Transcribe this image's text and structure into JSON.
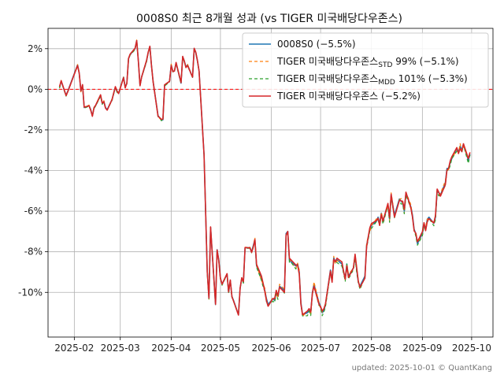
{
  "chart_data": {
    "type": "line",
    "title": "0008S0 최근 8개월 성과 (vs TIGER 미국배당다우존스)",
    "footer": "updated: 2025-10-01 © QuantKang",
    "xlabel": "",
    "ylabel": "",
    "x_ticks": [
      "2025-02",
      "2025-03",
      "2025-04",
      "2025-05",
      "2025-06",
      "2025-07",
      "2025-08",
      "2025-09",
      "2025-10"
    ],
    "y_ticks": [
      "2%",
      "0%",
      "-2%",
      "-4%",
      "-6%",
      "-8%",
      "-10%"
    ],
    "y_tick_values": [
      2,
      0,
      -2,
      -4,
      -6,
      -8,
      -10
    ],
    "xlim": [
      "2025-01-16",
      "2025-10-14"
    ],
    "ylim": [
      -12.2,
      3.0
    ],
    "grid": true,
    "reference_line": {
      "y": 0,
      "color": "#ff0000",
      "style": "dashed"
    },
    "legend_position": "top-right",
    "legend": [
      {
        "prefix": "0008S0 (−5.5%)",
        "sub": "",
        "suffix": ""
      },
      {
        "prefix": "TIGER 미국배당다우존스",
        "sub": "STD",
        "suffix": " 99% (−5.1%)"
      },
      {
        "prefix": "TIGER 미국배당다우존스",
        "sub": "MDD",
        "suffix": " 101% (−5.3%)"
      },
      {
        "prefix": "TIGER 미국배당다우존스 (−5.2%)",
        "sub": "",
        "suffix": ""
      }
    ],
    "series": [
      {
        "name": "0008S0 (−5.5%)",
        "color": "#1f77b4",
        "dash": "",
        "width": 1.6,
        "points": [
          [
            "2025-01-23",
            0.1
          ],
          [
            "2025-01-24",
            0.4
          ],
          [
            "2025-01-27",
            -0.3
          ],
          [
            "2025-01-28",
            -0.1
          ],
          [
            "2025-02-03",
            1.2
          ],
          [
            "2025-02-04",
            0.8
          ],
          [
            "2025-02-05",
            -0.1
          ],
          [
            "2025-02-06",
            0.2
          ],
          [
            "2025-02-07",
            -0.9
          ],
          [
            "2025-02-10",
            -0.8
          ],
          [
            "2025-02-11",
            -1.0
          ],
          [
            "2025-02-12",
            -1.3
          ],
          [
            "2025-02-13",
            -0.9
          ],
          [
            "2025-02-14",
            -0.8
          ],
          [
            "2025-02-17",
            -0.3
          ],
          [
            "2025-02-18",
            -0.7
          ],
          [
            "2025-02-19",
            -0.6
          ],
          [
            "2025-02-20",
            -0.9
          ],
          [
            "2025-02-21",
            -1.0
          ],
          [
            "2025-02-24",
            -0.5
          ],
          [
            "2025-02-25",
            -0.2
          ],
          [
            "2025-02-26",
            0.1
          ],
          [
            "2025-02-27",
            -0.1
          ],
          [
            "2025-02-28",
            -0.2
          ],
          [
            "2025-03-03",
            0.6
          ],
          [
            "2025-03-04",
            0.1
          ],
          [
            "2025-03-05",
            0.3
          ],
          [
            "2025-03-06",
            1.5
          ],
          [
            "2025-03-07",
            1.7
          ],
          [
            "2025-03-10",
            2.0
          ],
          [
            "2025-03-11",
            2.4
          ],
          [
            "2025-03-12",
            1.4
          ],
          [
            "2025-03-13",
            0.2
          ],
          [
            "2025-03-14",
            0.6
          ],
          [
            "2025-03-17",
            1.4
          ],
          [
            "2025-03-18",
            1.8
          ],
          [
            "2025-03-19",
            2.1
          ],
          [
            "2025-03-20",
            1.2
          ],
          [
            "2025-03-21",
            0.4
          ],
          [
            "2025-03-24",
            -1.3
          ],
          [
            "2025-03-25",
            -1.4
          ],
          [
            "2025-03-26",
            -1.5
          ],
          [
            "2025-03-27",
            -1.5
          ],
          [
            "2025-03-28",
            0.2
          ],
          [
            "2025-03-31",
            0.4
          ],
          [
            "2025-04-01",
            1.2
          ],
          [
            "2025-04-02",
            0.9
          ],
          [
            "2025-04-03",
            0.9
          ],
          [
            "2025-04-04",
            1.3
          ],
          [
            "2025-04-07",
            0.3
          ],
          [
            "2025-04-08",
            1.6
          ],
          [
            "2025-04-09",
            1.4
          ],
          [
            "2025-04-10",
            1.1
          ],
          [
            "2025-04-11",
            1.2
          ],
          [
            "2025-04-14",
            0.6
          ],
          [
            "2025-04-15",
            2.0
          ],
          [
            "2025-04-16",
            1.8
          ],
          [
            "2025-04-17",
            1.4
          ],
          [
            "2025-04-18",
            0.9
          ],
          [
            "2025-04-21",
            -3.2
          ],
          [
            "2025-04-22",
            -6.0
          ],
          [
            "2025-04-23",
            -9.0
          ],
          [
            "2025-04-24",
            -10.3
          ],
          [
            "2025-04-25",
            -6.8
          ],
          [
            "2025-04-28",
            -10.6
          ],
          [
            "2025-04-29",
            -7.9
          ],
          [
            "2025-04-30",
            -8.4
          ],
          [
            "2025-05-01",
            -9.3
          ],
          [
            "2025-05-02",
            -9.6
          ],
          [
            "2025-05-05",
            -9.1
          ],
          [
            "2025-05-06",
            -10.0
          ],
          [
            "2025-05-07",
            -9.4
          ],
          [
            "2025-05-08",
            -10.2
          ],
          [
            "2025-05-09",
            -10.4
          ],
          [
            "2025-05-12",
            -11.1
          ],
          [
            "2025-05-13",
            -9.8
          ],
          [
            "2025-05-14",
            -9.3
          ],
          [
            "2025-05-15",
            -9.5
          ],
          [
            "2025-05-16",
            -7.8
          ],
          [
            "2025-05-19",
            -7.8
          ],
          [
            "2025-05-20",
            -8.0
          ],
          [
            "2025-05-21",
            -7.7
          ],
          [
            "2025-05-22",
            -7.4
          ],
          [
            "2025-05-23",
            -8.7
          ],
          [
            "2025-05-26",
            -9.3
          ],
          [
            "2025-05-27",
            -9.6
          ],
          [
            "2025-05-28",
            -9.9
          ],
          [
            "2025-05-29",
            -10.3
          ],
          [
            "2025-05-30",
            -10.6
          ],
          [
            "2025-06-02",
            -10.3
          ],
          [
            "2025-06-03",
            -10.4
          ],
          [
            "2025-06-04",
            -10.0
          ],
          [
            "2025-06-05",
            -10.2
          ],
          [
            "2025-06-06",
            -9.7
          ],
          [
            "2025-06-09",
            -9.9
          ],
          [
            "2025-06-10",
            -7.1
          ],
          [
            "2025-06-11",
            -7.0
          ],
          [
            "2025-06-12",
            -8.4
          ],
          [
            "2025-06-13",
            -8.5
          ],
          [
            "2025-06-16",
            -8.7
          ],
          [
            "2025-06-17",
            -8.6
          ],
          [
            "2025-06-18",
            -9.0
          ],
          [
            "2025-06-19",
            -10.5
          ],
          [
            "2025-06-20",
            -11.1
          ],
          [
            "2025-06-23",
            -11.0
          ],
          [
            "2025-06-24",
            -10.9
          ],
          [
            "2025-06-25",
            -11.0
          ],
          [
            "2025-06-26",
            -10.0
          ],
          [
            "2025-06-27",
            -9.6
          ],
          [
            "2025-06-30",
            -10.5
          ],
          [
            "2025-07-01",
            -10.7
          ],
          [
            "2025-07-02",
            -11.0
          ],
          [
            "2025-07-03",
            -10.9
          ],
          [
            "2025-07-04",
            -10.6
          ],
          [
            "2025-07-07",
            -8.9
          ],
          [
            "2025-07-08",
            -9.4
          ],
          [
            "2025-07-09",
            -8.3
          ],
          [
            "2025-07-10",
            -8.5
          ],
          [
            "2025-07-11",
            -8.4
          ],
          [
            "2025-07-14",
            -8.6
          ],
          [
            "2025-07-15",
            -9.0
          ],
          [
            "2025-07-16",
            -9.3
          ],
          [
            "2025-07-17",
            -8.6
          ],
          [
            "2025-07-18",
            -9.2
          ],
          [
            "2025-07-21",
            -8.8
          ],
          [
            "2025-07-22",
            -8.2
          ],
          [
            "2025-07-23",
            -8.9
          ],
          [
            "2025-07-24",
            -9.5
          ],
          [
            "2025-07-25",
            -9.7
          ],
          [
            "2025-07-28",
            -9.2
          ],
          [
            "2025-07-29",
            -7.7
          ],
          [
            "2025-07-30",
            -7.3
          ],
          [
            "2025-07-31",
            -6.9
          ],
          [
            "2025-08-01",
            -6.7
          ],
          [
            "2025-08-04",
            -6.5
          ],
          [
            "2025-08-05",
            -6.3
          ],
          [
            "2025-08-06",
            -6.6
          ],
          [
            "2025-08-07",
            -6.1
          ],
          [
            "2025-08-08",
            -6.5
          ],
          [
            "2025-08-11",
            -5.7
          ],
          [
            "2025-08-12",
            -6.4
          ],
          [
            "2025-08-13",
            -5.2
          ],
          [
            "2025-08-14",
            -5.7
          ],
          [
            "2025-08-15",
            -6.2
          ],
          [
            "2025-08-18",
            -5.4
          ],
          [
            "2025-08-19",
            -5.5
          ],
          [
            "2025-08-20",
            -5.6
          ],
          [
            "2025-08-21",
            -6.0
          ],
          [
            "2025-08-22",
            -5.1
          ],
          [
            "2025-08-25",
            -5.8
          ],
          [
            "2025-08-26",
            -6.2
          ],
          [
            "2025-08-27",
            -6.9
          ],
          [
            "2025-08-28",
            -7.1
          ],
          [
            "2025-08-29",
            -7.6
          ],
          [
            "2025-09-01",
            -7.1
          ],
          [
            "2025-09-02",
            -6.6
          ],
          [
            "2025-09-03",
            -6.9
          ],
          [
            "2025-09-04",
            -6.4
          ],
          [
            "2025-09-05",
            -6.3
          ],
          [
            "2025-09-08",
            -6.6
          ],
          [
            "2025-09-09",
            -6.3
          ],
          [
            "2025-09-10",
            -5.0
          ],
          [
            "2025-09-11",
            -5.1
          ],
          [
            "2025-09-12",
            -5.2
          ],
          [
            "2025-09-15",
            -4.6
          ],
          [
            "2025-09-16",
            -3.9
          ],
          [
            "2025-09-17",
            -3.9
          ],
          [
            "2025-09-18",
            -3.6
          ],
          [
            "2025-09-19",
            -3.4
          ],
          [
            "2025-09-22",
            -2.9
          ],
          [
            "2025-09-23",
            -3.1
          ],
          [
            "2025-09-24",
            -2.8
          ],
          [
            "2025-09-25",
            -3.0
          ],
          [
            "2025-09-26",
            -2.7
          ],
          [
            "2025-09-29",
            -3.5
          ],
          [
            "2025-09-30",
            -3.2
          ]
        ]
      },
      {
        "name": "TIGER 미국배당다우존스STD 99% (−5.1%)",
        "color": "#ff7f0e",
        "dash": "4,3",
        "width": 1.2,
        "points": []
      },
      {
        "name": "TIGER 미국배당다우존스MDD 101% (−5.3%)",
        "color": "#2ca02c",
        "dash": "4,3",
        "width": 1.2,
        "points": []
      },
      {
        "name": "TIGER 미국배당다우존스 (−5.2%)",
        "color": "#d62728",
        "dash": "",
        "width": 1.6,
        "points": []
      }
    ]
  }
}
